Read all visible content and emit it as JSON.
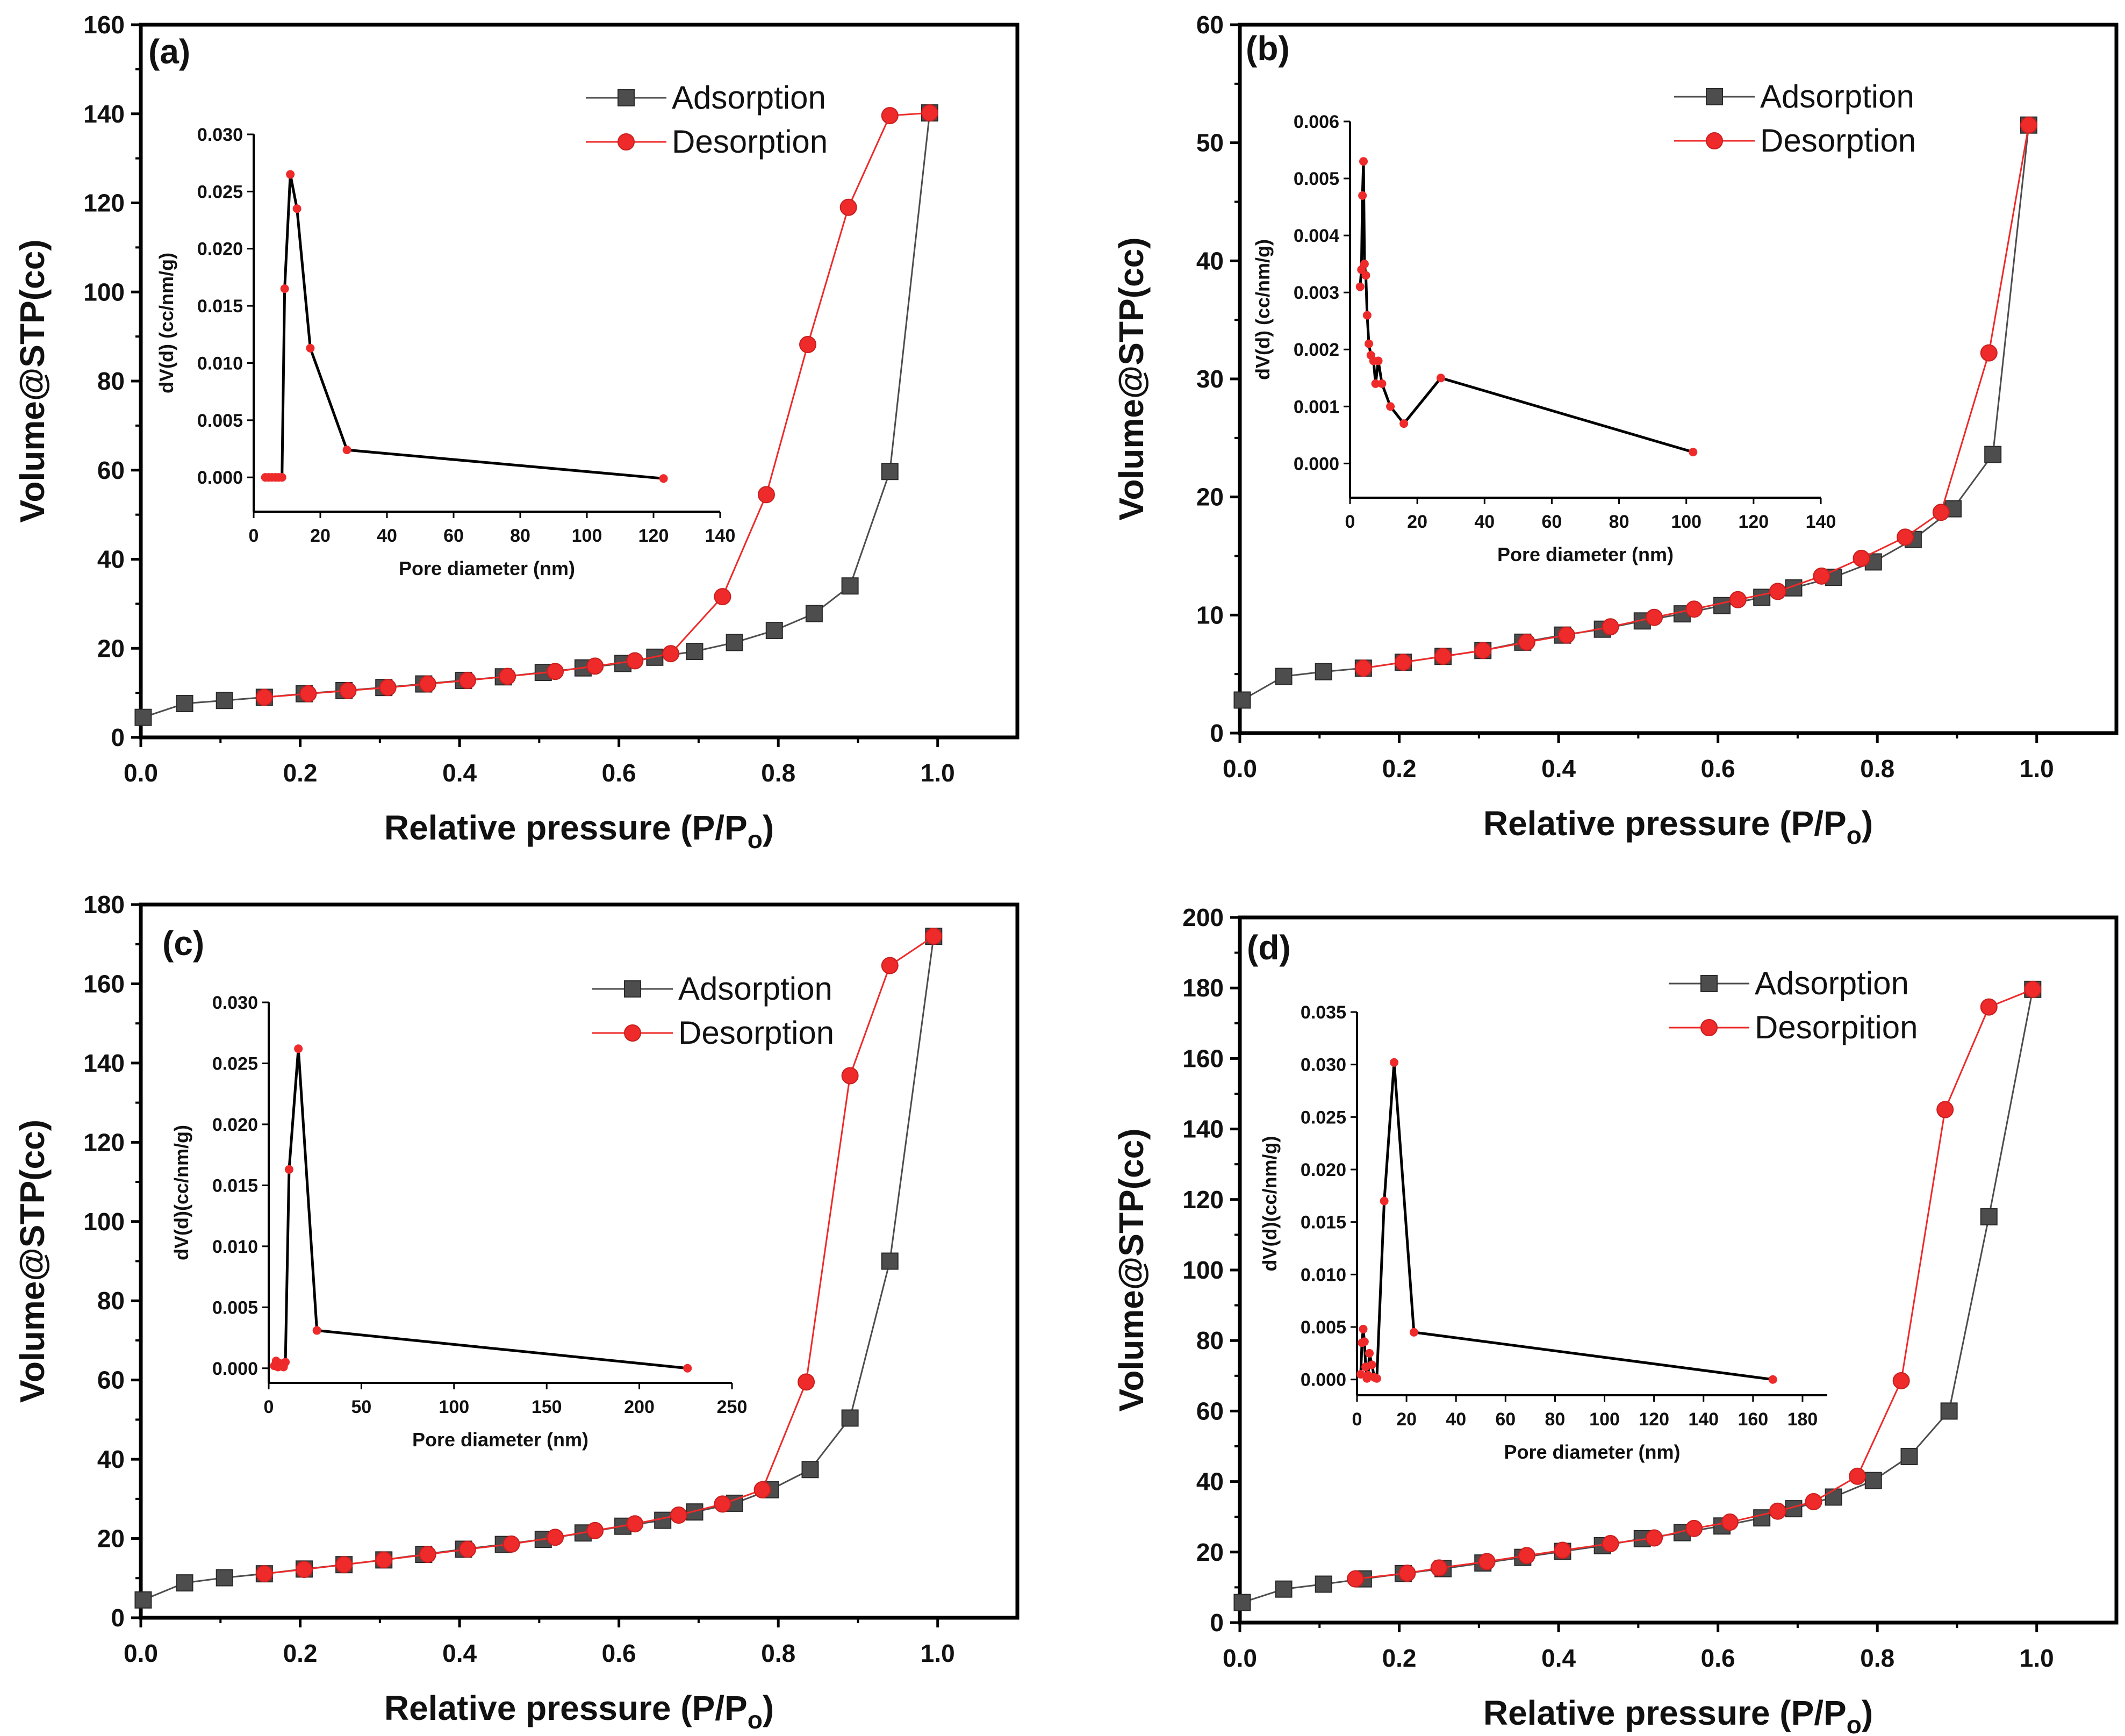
{
  "colors": {
    "adsorption": "#4d4d4d",
    "desorption": "#ee2a2a",
    "inset_line": "#000000",
    "inset_marker": "#ee2a2a",
    "frame": "#000000"
  },
  "chart_data": [
    {
      "panel": "(a)",
      "type": "line",
      "xlabel": "Relative pressure (P/Po)",
      "ylabel": "Volume@STP(cc)",
      "xlim": [
        0,
        1.1
      ],
      "ylim": [
        0,
        160
      ],
      "xticks": [
        0.0,
        0.2,
        0.4,
        0.6,
        0.8,
        1.0
      ],
      "xtick_labels": [
        "0.0",
        "0.2",
        "0.4",
        "0.6",
        "0.8",
        "1.0"
      ],
      "yticks": [
        0,
        20,
        40,
        60,
        80,
        100,
        120,
        140,
        160
      ],
      "ytick_labels": [
        "0",
        "20",
        "40",
        "60",
        "80",
        "100",
        "120",
        "140",
        "160"
      ],
      "legend": {
        "placement": "top-right",
        "entries": [
          "Adsorption",
          "Desorption"
        ]
      },
      "series": [
        {
          "name": "Adsorption",
          "marker": "square",
          "x": [
            0.003,
            0.055,
            0.105,
            0.155,
            0.205,
            0.255,
            0.305,
            0.355,
            0.405,
            0.455,
            0.505,
            0.555,
            0.605,
            0.645,
            0.695,
            0.745,
            0.795,
            0.845,
            0.89,
            0.94,
            0.99
          ],
          "y": [
            4.5,
            7.6,
            8.3,
            9.0,
            9.8,
            10.5,
            11.2,
            12.0,
            12.8,
            13.6,
            14.6,
            15.6,
            16.6,
            18.0,
            19.3,
            21.3,
            24.0,
            27.8,
            34.0,
            59.7,
            140.2
          ]
        },
        {
          "name": "Desorption",
          "marker": "circle",
          "x": [
            0.155,
            0.21,
            0.26,
            0.31,
            0.36,
            0.41,
            0.46,
            0.52,
            0.57,
            0.62,
            0.665,
            0.73,
            0.785,
            0.837,
            0.888,
            0.94,
            0.99
          ],
          "y": [
            9.0,
            9.8,
            10.5,
            11.2,
            12.0,
            12.8,
            13.7,
            14.8,
            16.0,
            17.2,
            18.8,
            31.6,
            54.5,
            88.2,
            119.0,
            139.6,
            140.2
          ]
        }
      ],
      "inset": {
        "type": "line",
        "xlabel": "Pore diameter (nm)",
        "ylabel": "dV(d) (cc/nm/g)",
        "xlim": [
          0,
          140
        ],
        "ylim": [
          -0.003,
          0.03
        ],
        "xticks": [
          0,
          20,
          40,
          60,
          80,
          100,
          120,
          140
        ],
        "xtick_labels": [
          "0",
          "20",
          "40",
          "60",
          "80",
          "100",
          "120",
          "140"
        ],
        "yticks": [
          0.0,
          0.005,
          0.01,
          0.015,
          0.02,
          0.025,
          0.03
        ],
        "ytick_labels": [
          "0.000",
          "0.005",
          "0.010",
          "0.015",
          "0.020",
          "0.025",
          "0.030"
        ],
        "x": [
          3.5,
          4.5,
          5.5,
          6.5,
          7.5,
          8.5,
          9.3,
          11.0,
          13.0,
          17.0,
          28.0,
          123.0
        ],
        "y": [
          0.0,
          0.0,
          0.0,
          0.0,
          0.0,
          0.0,
          0.0165,
          0.0265,
          0.0235,
          0.0113,
          0.0024,
          -0.0001
        ]
      }
    },
    {
      "panel": "(b)",
      "type": "line",
      "xlabel": "Relative pressure (P/Po)",
      "ylabel": "Volume@STP(cc)",
      "xlim": [
        0,
        1.1
      ],
      "ylim": [
        0,
        60
      ],
      "xticks": [
        0.0,
        0.2,
        0.4,
        0.6,
        0.8,
        1.0
      ],
      "xtick_labels": [
        "0.0",
        "0.2",
        "0.4",
        "0.6",
        "0.8",
        "1.0"
      ],
      "yticks": [
        0,
        10,
        20,
        30,
        40,
        50,
        60
      ],
      "ytick_labels": [
        "0",
        "10",
        "20",
        "30",
        "40",
        "50",
        "60"
      ],
      "legend": {
        "placement": "top-right",
        "entries": [
          "Adsorption",
          "Desorption"
        ]
      },
      "series": [
        {
          "name": "Adsorption",
          "marker": "square",
          "x": [
            0.003,
            0.055,
            0.105,
            0.155,
            0.205,
            0.255,
            0.305,
            0.355,
            0.405,
            0.455,
            0.505,
            0.555,
            0.605,
            0.655,
            0.695,
            0.745,
            0.795,
            0.845,
            0.895,
            0.945,
            0.99
          ],
          "y": [
            2.8,
            4.8,
            5.2,
            5.5,
            6.0,
            6.5,
            7.0,
            7.7,
            8.3,
            8.8,
            9.5,
            10.1,
            10.8,
            11.5,
            12.3,
            13.2,
            14.5,
            16.4,
            19.0,
            23.6,
            51.5
          ]
        },
        {
          "name": "Desorption",
          "marker": "circle",
          "x": [
            0.155,
            0.205,
            0.255,
            0.305,
            0.36,
            0.41,
            0.465,
            0.52,
            0.57,
            0.625,
            0.675,
            0.73,
            0.78,
            0.835,
            0.88,
            0.94,
            0.99
          ],
          "y": [
            5.5,
            6.0,
            6.5,
            7.0,
            7.7,
            8.3,
            9.0,
            9.8,
            10.5,
            11.3,
            12.0,
            13.3,
            14.8,
            16.6,
            18.7,
            32.2,
            51.5
          ]
        }
      ],
      "inset": {
        "type": "line",
        "xlabel": "Pore diameter (nm)",
        "ylabel": "dV(d) (cc/nm/g)",
        "xlim": [
          0,
          140
        ],
        "ylim": [
          -0.0006,
          0.006
        ],
        "xticks": [
          0,
          20,
          40,
          60,
          80,
          100,
          120,
          140
        ],
        "xtick_labels": [
          "0",
          "20",
          "40",
          "60",
          "80",
          "100",
          "120",
          "140"
        ],
        "yticks": [
          0.0,
          0.001,
          0.002,
          0.003,
          0.004,
          0.005,
          0.006
        ],
        "ytick_labels": [
          "0.000",
          "0.001",
          "0.002",
          "0.003",
          "0.004",
          "0.005",
          "0.006"
        ],
        "x": [
          3.0,
          3.4,
          3.7,
          4.0,
          4.3,
          4.7,
          5.1,
          5.6,
          6.2,
          7.0,
          7.6,
          8.4,
          9.5,
          12.0,
          16.0,
          27.0,
          102.0
        ],
        "y": [
          0.0031,
          0.0034,
          0.0047,
          0.0053,
          0.0035,
          0.0033,
          0.0026,
          0.0021,
          0.0019,
          0.0018,
          0.0014,
          0.0018,
          0.0014,
          0.001,
          0.0007,
          0.0015,
          0.0002
        ]
      }
    },
    {
      "panel": "(c)",
      "type": "line",
      "xlabel": "Relative pressure (P/Po)",
      "ylabel": "Volume@STP(cc)",
      "xlim": [
        0,
        1.1
      ],
      "ylim": [
        0,
        180
      ],
      "xticks": [
        0.0,
        0.2,
        0.4,
        0.6,
        0.8,
        1.0
      ],
      "xtick_labels": [
        "0.0",
        "0.2",
        "0.4",
        "0.6",
        "0.8",
        "1.0"
      ],
      "yticks": [
        0,
        20,
        40,
        60,
        80,
        100,
        120,
        140,
        160,
        180
      ],
      "ytick_labels": [
        "0",
        "20",
        "40",
        "60",
        "80",
        "100",
        "120",
        "140",
        "160",
        "180"
      ],
      "legend": {
        "placement": "top-right",
        "entries": [
          "Adsorption",
          "Desorption"
        ]
      },
      "series": [
        {
          "name": "Adsorption",
          "marker": "square",
          "x": [
            0.003,
            0.055,
            0.105,
            0.155,
            0.205,
            0.255,
            0.305,
            0.355,
            0.405,
            0.455,
            0.505,
            0.555,
            0.605,
            0.655,
            0.695,
            0.745,
            0.79,
            0.84,
            0.89,
            0.94,
            0.995
          ],
          "y": [
            4.5,
            8.8,
            10.1,
            11.1,
            12.3,
            13.4,
            14.6,
            16.0,
            17.3,
            18.5,
            19.8,
            21.4,
            23.1,
            24.6,
            26.7,
            28.9,
            32.3,
            37.4,
            50.4,
            90.0,
            172.0
          ]
        },
        {
          "name": "Desorption",
          "marker": "circle",
          "x": [
            0.155,
            0.205,
            0.255,
            0.305,
            0.36,
            0.41,
            0.465,
            0.52,
            0.57,
            0.62,
            0.675,
            0.73,
            0.78,
            0.835,
            0.89,
            0.94,
            0.995
          ],
          "y": [
            11.1,
            12.2,
            13.4,
            14.6,
            16.0,
            17.3,
            18.6,
            20.3,
            22.0,
            23.7,
            25.9,
            28.7,
            32.3,
            59.5,
            136.8,
            164.6,
            172.0
          ]
        }
      ],
      "inset": {
        "type": "line",
        "xlabel": "Pore diameter (nm)",
        "ylabel": "dV(d)(cc/nm/g)",
        "xlim": [
          0,
          250
        ],
        "ylim": [
          -0.0012,
          0.03
        ],
        "xticks": [
          0,
          50,
          100,
          150,
          200,
          250
        ],
        "xtick_labels": [
          "0",
          "50",
          "100",
          "150",
          "200",
          "250"
        ],
        "yticks": [
          0.0,
          0.005,
          0.01,
          0.015,
          0.02,
          0.025,
          0.03
        ],
        "ytick_labels": [
          "0.000",
          "0.005",
          "0.010",
          "0.015",
          "0.020",
          "0.025",
          "0.030"
        ],
        "x": [
          3.0,
          4.0,
          5.0,
          6.0,
          7.0,
          8.0,
          9.0,
          11.0,
          16.0,
          26.0,
          226.0
        ],
        "y": [
          0.0002,
          0.0006,
          0.0001,
          0.0004,
          0.0003,
          0.0001,
          0.0005,
          0.0163,
          0.0262,
          0.0031,
          0.0
        ]
      }
    },
    {
      "panel": "(d)",
      "type": "line",
      "xlabel": "Relative pressure (P/Po)",
      "ylabel": "Volume@STP(cc)",
      "xlim": [
        0,
        1.1
      ],
      "ylim": [
        0,
        200
      ],
      "xticks": [
        0.0,
        0.2,
        0.4,
        0.6,
        0.8,
        1.0
      ],
      "xtick_labels": [
        "0.0",
        "0.2",
        "0.4",
        "0.6",
        "0.8",
        "1.0"
      ],
      "yticks": [
        0,
        20,
        40,
        60,
        80,
        100,
        120,
        140,
        160,
        180,
        200
      ],
      "ytick_labels": [
        "0",
        "20",
        "40",
        "60",
        "80",
        "100",
        "120",
        "140",
        "160",
        "180",
        "200"
      ],
      "legend": {
        "placement": "top-right",
        "entries": [
          "Adsorption",
          "Desorpition"
        ]
      },
      "series": [
        {
          "name": "Adsorption",
          "marker": "square",
          "x": [
            0.003,
            0.055,
            0.105,
            0.155,
            0.205,
            0.255,
            0.305,
            0.355,
            0.405,
            0.455,
            0.505,
            0.555,
            0.605,
            0.655,
            0.695,
            0.745,
            0.795,
            0.84,
            0.89,
            0.94,
            0.995
          ],
          "y": [
            5.7,
            9.5,
            10.9,
            12.4,
            13.9,
            15.3,
            16.9,
            18.5,
            20.2,
            21.8,
            23.8,
            25.5,
            27.4,
            29.7,
            32.3,
            35.6,
            40.3,
            47.1,
            60.0,
            115.1,
            179.6
          ]
        },
        {
          "name": "Desorpition",
          "marker": "circle",
          "x": [
            0.145,
            0.21,
            0.25,
            0.31,
            0.36,
            0.405,
            0.465,
            0.52,
            0.57,
            0.615,
            0.675,
            0.72,
            0.775,
            0.83,
            0.885,
            0.94,
            0.995
          ],
          "y": [
            12.4,
            14.0,
            15.5,
            17.3,
            19.0,
            20.5,
            22.4,
            24.0,
            26.7,
            28.5,
            31.6,
            34.3,
            41.5,
            68.6,
            145.5,
            174.6,
            179.6
          ]
        }
      ],
      "inset": {
        "type": "line",
        "xlabel": "Pore diameter (nm)",
        "ylabel": "dV(d)(cc/nm/g)",
        "xlim": [
          0,
          190
        ],
        "ylim": [
          -0.0015,
          0.035
        ],
        "xticks": [
          0,
          20,
          40,
          60,
          80,
          100,
          120,
          140,
          160,
          180
        ],
        "xtick_labels": [
          "0",
          "20",
          "40",
          "60",
          "80",
          "100",
          "120",
          "140",
          "160",
          "180"
        ],
        "yticks": [
          0.0,
          0.005,
          0.01,
          0.015,
          0.02,
          0.025,
          0.03,
          0.035
        ],
        "ytick_labels": [
          "0.000",
          "0.005",
          "0.010",
          "0.015",
          "0.020",
          "0.025",
          "0.030",
          "0.035"
        ],
        "x": [
          1.5,
          2.0,
          2.5,
          3.0,
          3.5,
          4.0,
          4.5,
          5.0,
          6.0,
          7.0,
          8.0,
          11.0,
          15.0,
          23.0,
          168.0
        ],
        "y": [
          0.0005,
          0.0035,
          0.0048,
          0.0036,
          0.0012,
          0.0001,
          0.0004,
          0.0025,
          0.0014,
          0.0002,
          0.0001,
          0.017,
          0.0302,
          0.0045,
          0.0
        ]
      }
    }
  ]
}
